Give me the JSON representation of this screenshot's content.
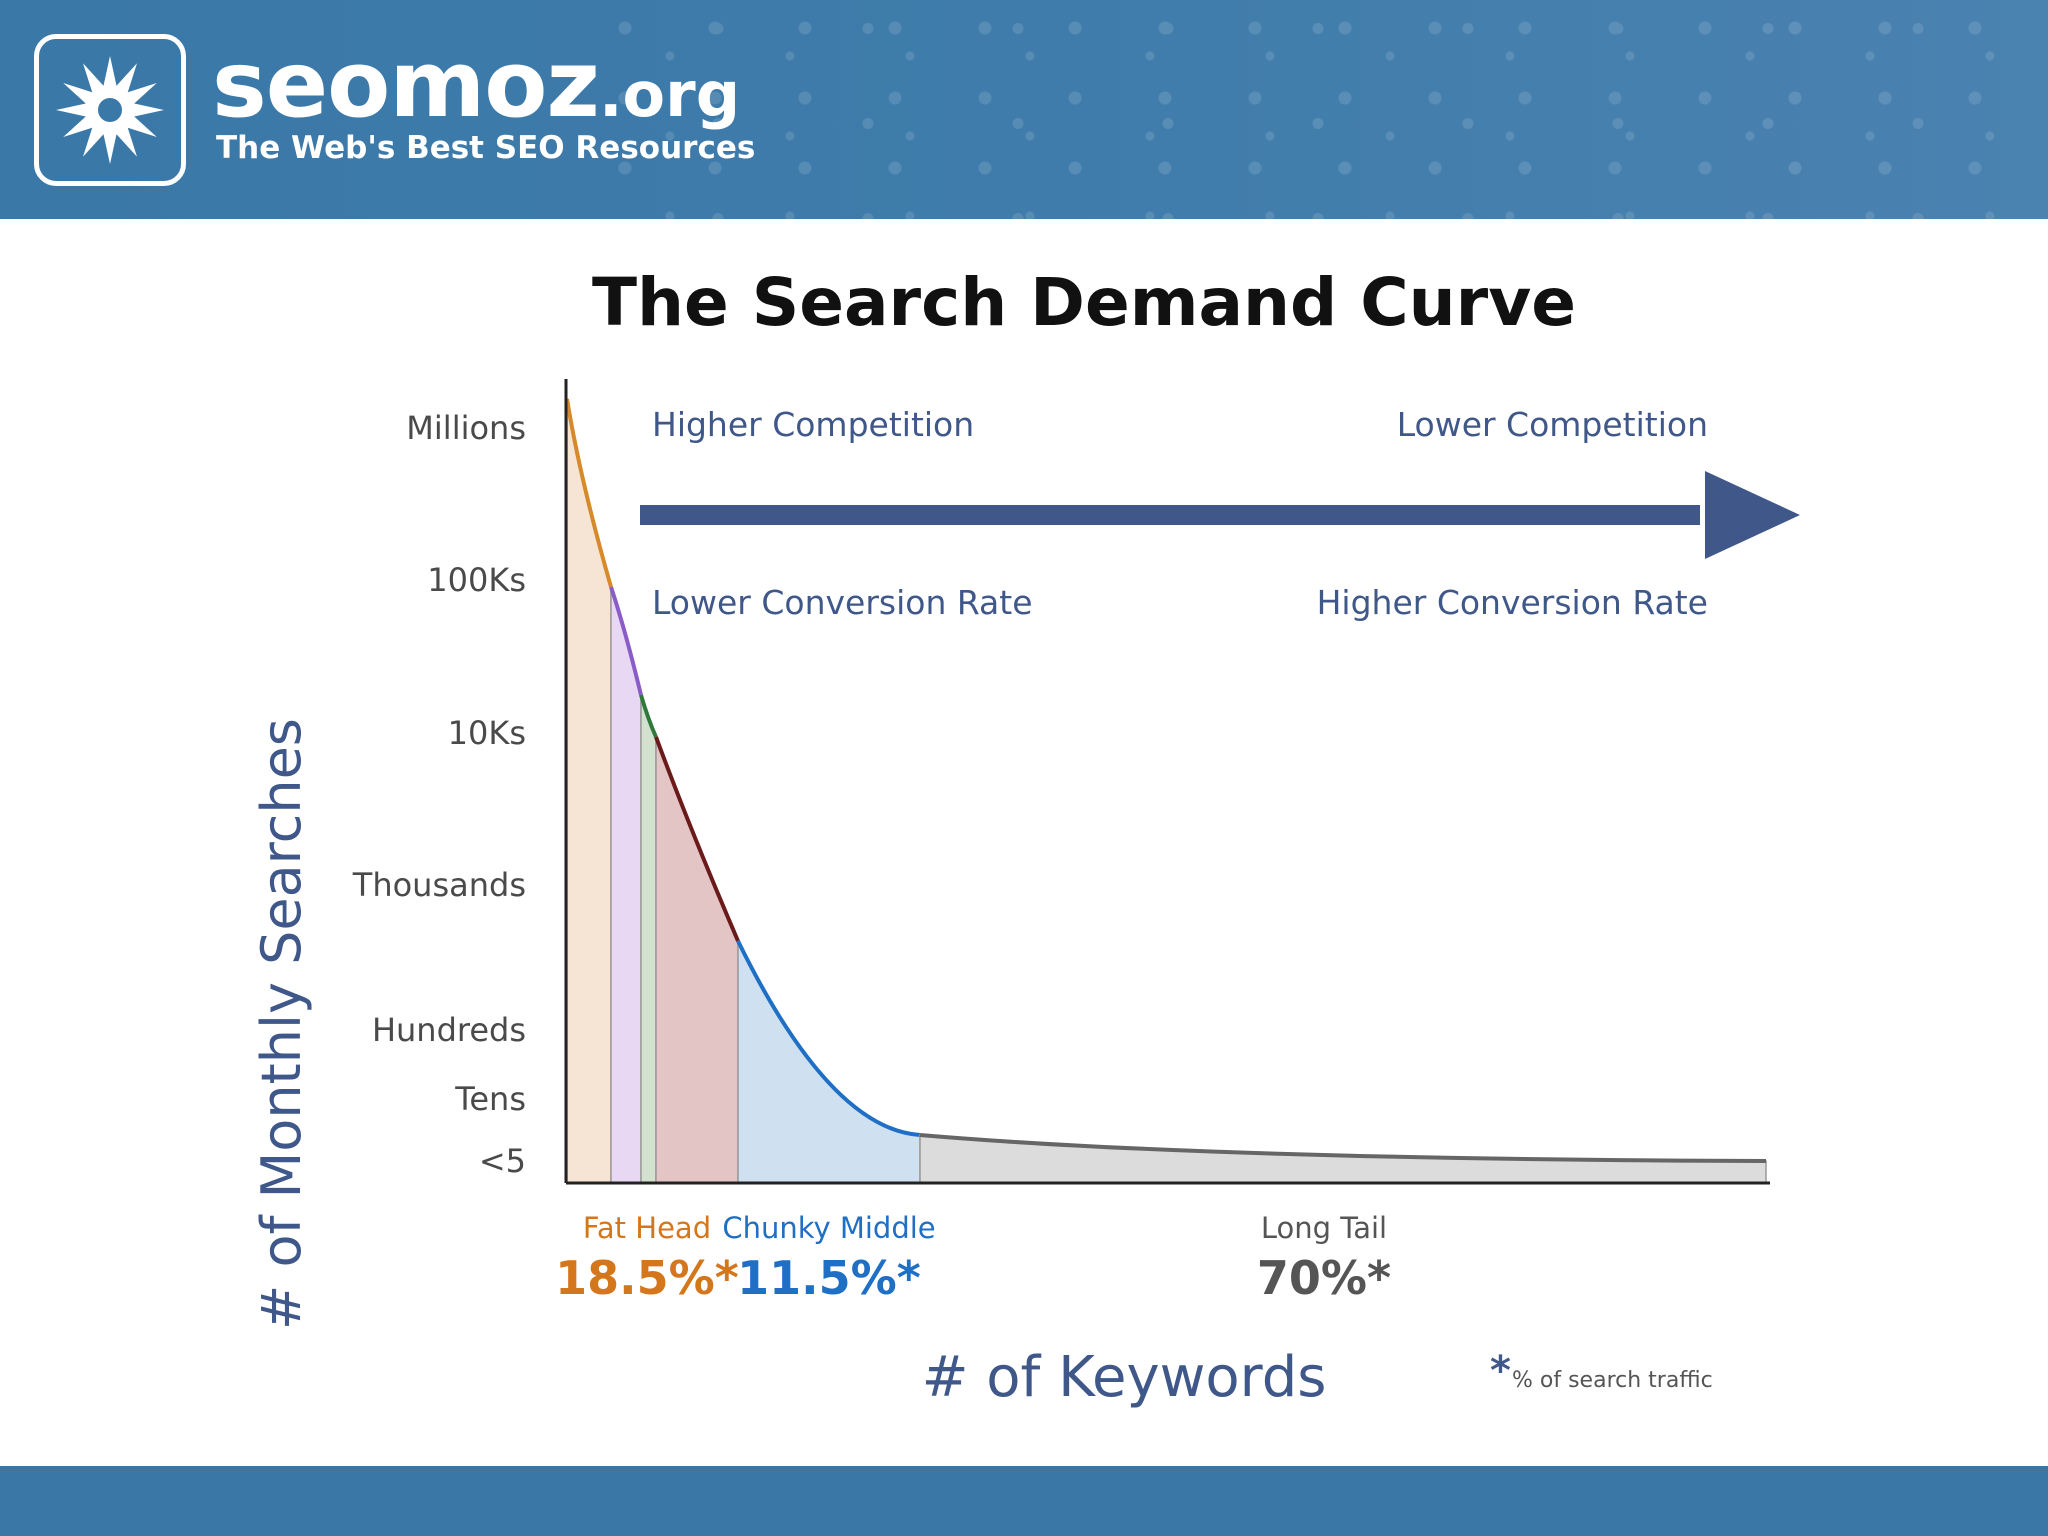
{
  "brand": {
    "name": "seomoz",
    "tld": ".org",
    "tagline": "The Web's Best SEO Resources"
  },
  "colors": {
    "header": "#3a78a8",
    "arrow": "#3f5889",
    "fat_head": "#d4761b",
    "chunky_middle": "#1f6fc4",
    "long_tail": "#555555",
    "footnote_mark": "#3f5889"
  },
  "chart_data": {
    "type": "area",
    "title": "The Search Demand Curve",
    "xlabel": "# of Keywords",
    "ylabel": "# of Monthly Searches",
    "y_scale": "log",
    "y_tick_labels": [
      "Millions",
      "100Ks",
      "10Ks",
      "Thousands",
      "Hundreds",
      "Tens",
      "<5"
    ],
    "grid": false,
    "legend": "none",
    "direction_arrow": {
      "left_top": "Higher Competition",
      "right_top": "Lower Competition",
      "left_bottom": "Lower Conversion Rate",
      "right_bottom": "Higher Conversion Rate"
    },
    "segments": [
      {
        "label": "Fat Head",
        "share": "18.5%*",
        "color": "#d4761b"
      },
      {
        "label": "Chunky Middle",
        "share": "11.5%*",
        "color": "#1f6fc4"
      },
      {
        "label": "Long Tail",
        "share": "70%*",
        "color": "#555555"
      }
    ],
    "curve_bands": [
      {
        "segment": "Fat Head",
        "stroke": "#d68a2a",
        "fill": "#f6e4d4"
      },
      {
        "segment": "Fat Head",
        "stroke": "#8a5cc8",
        "fill": "#e8d8f4"
      },
      {
        "segment": "Fat Head",
        "stroke": "#2f7a3a",
        "fill": "#d2e2cf"
      },
      {
        "segment": "Fat Head",
        "stroke": "#6b1a1a",
        "fill": "#e3c5c6"
      },
      {
        "segment": "Chunky Middle",
        "stroke": "#1f6fc4",
        "fill": "#cfe0f1"
      },
      {
        "segment": "Long Tail",
        "stroke": "#666666",
        "fill": "#dcdcdc"
      }
    ],
    "footnote": {
      "mark": "*",
      "text": "% of search traffic"
    }
  }
}
